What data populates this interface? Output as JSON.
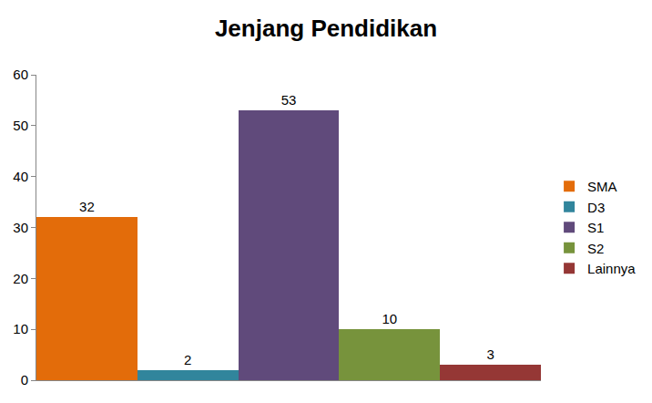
{
  "chart_data": {
    "type": "bar",
    "title": "Jenjang Pendidikan",
    "categories": [
      "SMA",
      "D3",
      "S1",
      "S2",
      "Lainnya"
    ],
    "values": [
      32,
      2,
      53,
      10,
      3
    ],
    "colors": [
      "#e36c0a",
      "#31859c",
      "#604a7b",
      "#77933c",
      "#953735"
    ],
    "ylim": [
      0,
      60
    ],
    "yticks": [
      0,
      10,
      20,
      30,
      40,
      50,
      60
    ],
    "grid": false,
    "legend": "right",
    "data_labels": true,
    "tick_labels": "y"
  }
}
